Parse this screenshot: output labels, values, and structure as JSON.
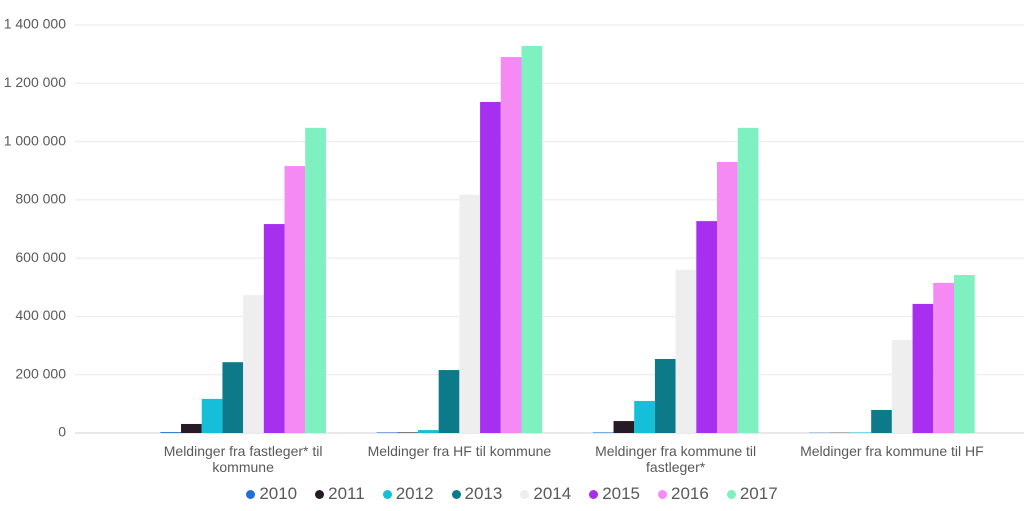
{
  "chart_data": {
    "type": "bar",
    "categories": [
      "Meldinger fra fastleger* til kommune",
      "Meldinger fra HF til kommune",
      "Meldinger fra kommune til fastleger*",
      "Meldinger fra kommune til HF"
    ],
    "series": [
      {
        "name": "2010",
        "color": "#1f6fd6",
        "values": [
          3000,
          2000,
          2000,
          1000
        ]
      },
      {
        "name": "2011",
        "color": "#261a26",
        "values": [
          31000,
          2000,
          41000,
          1000
        ]
      },
      {
        "name": "2012",
        "color": "#15bfd8",
        "values": [
          117000,
          10000,
          110000,
          2000
        ]
      },
      {
        "name": "2013",
        "color": "#0d7a8a",
        "values": [
          243000,
          216000,
          254000,
          79000
        ]
      },
      {
        "name": "2014",
        "color": "#eeeeee",
        "values": [
          473000,
          817000,
          560000,
          319000
        ]
      },
      {
        "name": "2015",
        "color": "#a62ff0",
        "values": [
          717000,
          1136000,
          727000,
          443000
        ]
      },
      {
        "name": "2016",
        "color": "#f58af5",
        "values": [
          916000,
          1290000,
          930000,
          515000
        ]
      },
      {
        "name": "2017",
        "color": "#7ff0bf",
        "values": [
          1047000,
          1328000,
          1047000,
          542000
        ]
      }
    ],
    "ylim": [
      0,
      1400000
    ],
    "yticks": [
      0,
      {
        "value": 200000,
        "label": "200 000"
      },
      {
        "value": 400000,
        "label": "400 000"
      },
      {
        "value": 600000,
        "label": "600 000"
      },
      {
        "value": 800000,
        "label": "800 000"
      },
      {
        "value": 1000000,
        "label": "1 000 000"
      },
      {
        "value": 1200000,
        "label": "1 200 000"
      },
      {
        "value": 1400000,
        "label": "1 400 000"
      }
    ],
    "grid": true
  }
}
